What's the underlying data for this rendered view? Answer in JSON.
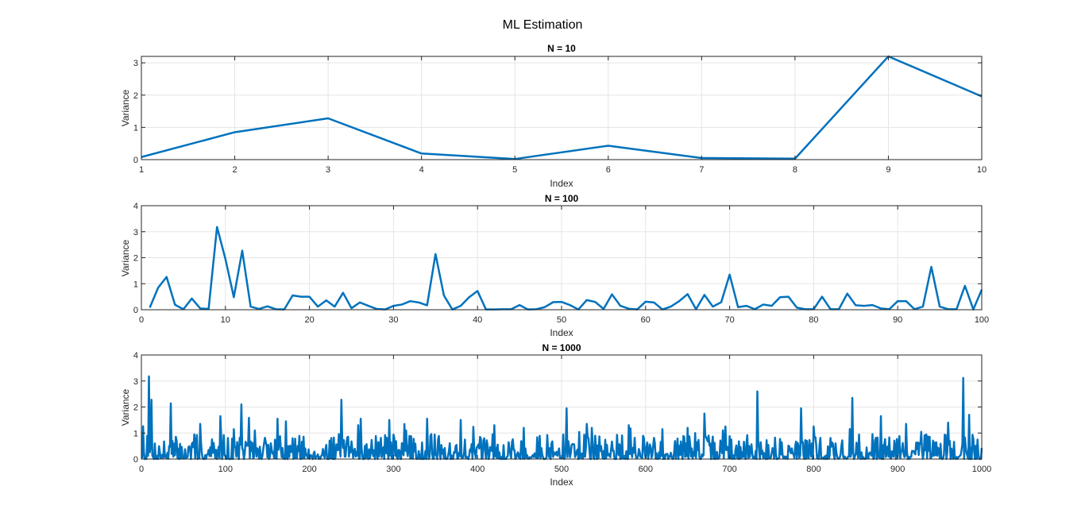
{
  "figure": {
    "title": "ML Estimation"
  },
  "colors": {
    "line": "#0072bd",
    "grid": "#e5e5e5",
    "axis": "#262626"
  },
  "chart_data": [
    {
      "type": "line",
      "title": "N = 10",
      "xlabel": "Index",
      "ylabel": "Variance",
      "xlim": [
        1,
        10
      ],
      "ylim": [
        0,
        3.2
      ],
      "xticks": [
        1,
        2,
        3,
        4,
        5,
        6,
        7,
        8,
        9,
        10
      ],
      "yticks": [
        0,
        1,
        2,
        3
      ],
      "grid": true,
      "series": [
        {
          "x": [
            1,
            2,
            3,
            4,
            5,
            6,
            7,
            8,
            9,
            10
          ],
          "values": [
            0.08,
            0.85,
            1.28,
            0.19,
            0.02,
            0.43,
            0.05,
            0.03,
            3.2,
            1.96
          ]
        }
      ]
    },
    {
      "type": "line",
      "title": "N = 100",
      "xlabel": "Index",
      "ylabel": "Variance",
      "xlim": [
        0,
        100
      ],
      "ylim": [
        0,
        4
      ],
      "xticks": [
        0,
        10,
        20,
        30,
        40,
        50,
        60,
        70,
        80,
        90,
        100
      ],
      "yticks": [
        0,
        1,
        2,
        3,
        4
      ],
      "grid": true,
      "series": [
        {
          "x": [
            1,
            2,
            3,
            4,
            5,
            6,
            7,
            8,
            9,
            10,
            11,
            12,
            13,
            14,
            15,
            16,
            17,
            18,
            19,
            20,
            21,
            22,
            23,
            24,
            25,
            26,
            27,
            28,
            29,
            30,
            31,
            32,
            33,
            34,
            35,
            36,
            37,
            38,
            39,
            40,
            41,
            42,
            43,
            44,
            45,
            46,
            47,
            48,
            49,
            50,
            51,
            52,
            53,
            54,
            55,
            56,
            57,
            58,
            59,
            60,
            61,
            62,
            63,
            64,
            65,
            66,
            67,
            68,
            69,
            70,
            71,
            72,
            73,
            74,
            75,
            76,
            77,
            78,
            79,
            80,
            81,
            82,
            83,
            84,
            85,
            86,
            87,
            88,
            89,
            90,
            91,
            92,
            93,
            94,
            95,
            96,
            97,
            98,
            99,
            100
          ],
          "values": [
            0.08,
            0.85,
            1.26,
            0.19,
            0.02,
            0.43,
            0.05,
            0.03,
            3.18,
            1.95,
            0.48,
            2.27,
            0.12,
            0.03,
            0.13,
            0.02,
            0.01,
            0.55,
            0.5,
            0.5,
            0.12,
            0.36,
            0.12,
            0.65,
            0.06,
            0.28,
            0.15,
            0.03,
            0.01,
            0.15,
            0.2,
            0.33,
            0.28,
            0.17,
            2.14,
            0.55,
            0.01,
            0.15,
            0.48,
            0.72,
            0.01,
            0.01,
            0.02,
            0.02,
            0.18,
            0.01,
            0.02,
            0.1,
            0.29,
            0.3,
            0.18,
            0.01,
            0.37,
            0.3,
            0.03,
            0.59,
            0.15,
            0.04,
            0.01,
            0.31,
            0.28,
            0.01,
            0.12,
            0.33,
            0.6,
            0.02,
            0.57,
            0.12,
            0.29,
            1.35,
            0.1,
            0.15,
            0.02,
            0.2,
            0.15,
            0.48,
            0.5,
            0.08,
            0.02,
            0.02,
            0.5,
            0.02,
            0.02,
            0.62,
            0.17,
            0.15,
            0.18,
            0.05,
            0.02,
            0.33,
            0.33,
            0.02,
            0.12,
            1.65,
            0.12,
            0.02,
            0.02,
            0.92,
            0.01,
            0.77
          ]
        }
      ]
    },
    {
      "type": "line",
      "title": "N = 1000",
      "xlabel": "Index",
      "ylabel": "Variance",
      "xlim": [
        0,
        1000
      ],
      "ylim": [
        0,
        4
      ],
      "xticks": [
        0,
        100,
        200,
        300,
        400,
        500,
        600,
        700,
        800,
        900,
        1000
      ],
      "yticks": [
        0,
        1,
        2,
        3,
        4
      ],
      "grid": true,
      "series": [
        {
          "x_start": 1,
          "x_step": 1,
          "peaks": [
            [
              9,
              3.18
            ],
            [
              12,
              2.28
            ],
            [
              2,
              1.26
            ],
            [
              35,
              2.14
            ],
            [
              70,
              1.35
            ],
            [
              94,
              1.65
            ],
            [
              98,
              0.92
            ],
            [
              119,
              2.1
            ],
            [
              110,
              1.15
            ],
            [
              135,
              1.1
            ],
            [
              162,
              1.55
            ],
            [
              172,
              1.45
            ],
            [
              238,
              2.28
            ],
            [
              258,
              1.3
            ],
            [
              261,
              1.55
            ],
            [
              295,
              1.5
            ],
            [
              315,
              1.1
            ],
            [
              340,
              1.55
            ],
            [
              380,
              1.5
            ],
            [
              420,
              1.3
            ],
            [
              455,
              1.2
            ],
            [
              506,
              1.95
            ],
            [
              530,
              1.35
            ],
            [
              536,
              1.2
            ],
            [
              580,
              1.3
            ],
            [
              620,
              1.15
            ],
            [
              650,
              1.2
            ],
            [
              670,
              1.75
            ],
            [
              695,
              1.25
            ],
            [
              733,
              2.6
            ],
            [
              785,
              1.95
            ],
            [
              800,
              1.25
            ],
            [
              846,
              2.35
            ],
            [
              880,
              1.65
            ],
            [
              910,
              1.35
            ],
            [
              960,
              1.4
            ],
            [
              978,
              3.12
            ],
            [
              985,
              1.7
            ],
            [
              995,
              0.75
            ]
          ],
          "baseline_level": 0.3,
          "seed": 7
        }
      ]
    }
  ]
}
